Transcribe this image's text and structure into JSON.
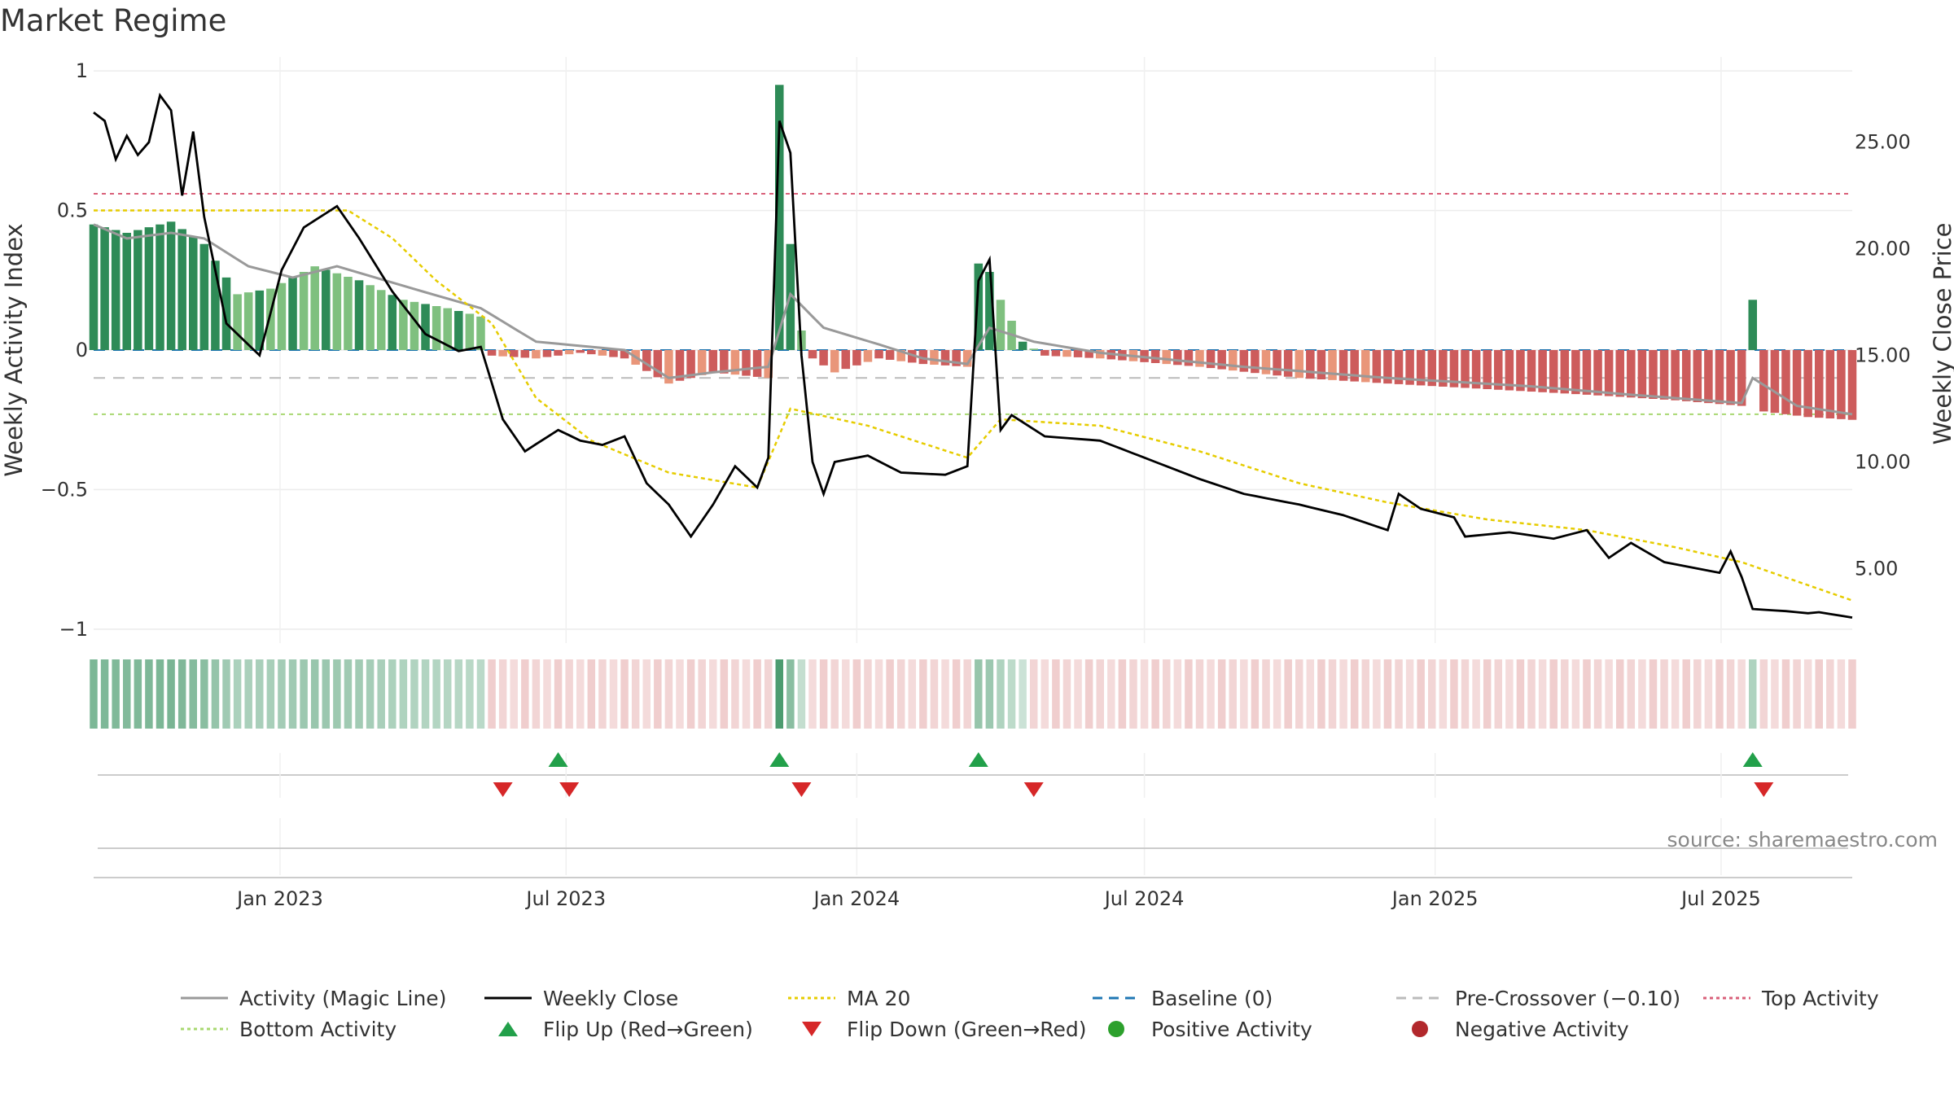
{
  "title": "Market Regime",
  "source": "source: sharemaestro.com",
  "chart_data": {
    "type": "bar",
    "title": "Market Regime",
    "left_axis": {
      "label": "Weekly Activity Index",
      "ylim": [
        -1.05,
        1.05
      ],
      "ticks": [
        1,
        0.5,
        0,
        -0.5,
        -1
      ],
      "tick_labels": [
        "1",
        "0.5",
        "0",
        "−0.5",
        "−1"
      ]
    },
    "right_axis": {
      "label": "Weekly Close Price",
      "ylim": [
        1.5,
        29.0
      ],
      "ticks": [
        25,
        20,
        15,
        10,
        5
      ],
      "tick_labels": [
        "25.00",
        "20.00",
        "15.00",
        "10.00",
        "5.00"
      ]
    },
    "x_axis": {
      "start": "2022-09-05",
      "end": "2025-09-22",
      "tick_labels": [
        "Jan 2023",
        "Jul 2023",
        "Jan 2024",
        "Jul 2024",
        "Jan 2025",
        "Jul 2025"
      ],
      "tick_dates": [
        "2023-01-01",
        "2023-07-01",
        "2024-01-01",
        "2024-07-01",
        "2025-01-01",
        "2025-07-01"
      ]
    },
    "reference_lines": {
      "top_activity": 0.56,
      "bottom_activity": -0.23,
      "baseline": 0,
      "pre_crossover": -0.1
    },
    "activity_anchors": [
      {
        "date": "2022-09-05",
        "value": 0.45
      },
      {
        "date": "2022-09-26",
        "value": 0.42
      },
      {
        "date": "2022-10-24",
        "value": 0.46
      },
      {
        "date": "2022-11-14",
        "value": 0.38
      },
      {
        "date": "2022-12-05",
        "value": 0.2
      },
      {
        "date": "2022-12-26",
        "value": 0.22
      },
      {
        "date": "2023-01-23",
        "value": 0.3
      },
      {
        "date": "2023-02-20",
        "value": 0.25
      },
      {
        "date": "2023-03-20",
        "value": 0.18
      },
      {
        "date": "2023-04-17",
        "value": 0.15
      },
      {
        "date": "2023-05-08",
        "value": 0.12
      },
      {
        "date": "2023-05-15",
        "value": -0.02
      },
      {
        "date": "2023-06-12",
        "value": -0.03
      },
      {
        "date": "2023-07-10",
        "value": -0.01
      },
      {
        "date": "2023-08-07",
        "value": -0.03
      },
      {
        "date": "2023-09-04",
        "value": -0.12
      },
      {
        "date": "2023-10-02",
        "value": -0.08
      },
      {
        "date": "2023-11-06",
        "value": -0.1
      },
      {
        "date": "2023-11-13",
        "value": 0.95
      },
      {
        "date": "2023-11-20",
        "value": 0.38
      },
      {
        "date": "2023-11-27",
        "value": 0.07
      },
      {
        "date": "2023-12-04",
        "value": -0.03
      },
      {
        "date": "2023-12-18",
        "value": -0.08
      },
      {
        "date": "2024-01-15",
        "value": -0.03
      },
      {
        "date": "2024-02-12",
        "value": -0.05
      },
      {
        "date": "2024-03-11",
        "value": -0.06
      },
      {
        "date": "2024-03-18",
        "value": 0.31
      },
      {
        "date": "2024-03-25",
        "value": 0.28
      },
      {
        "date": "2024-04-01",
        "value": 0.18
      },
      {
        "date": "2024-04-15",
        "value": 0.03
      },
      {
        "date": "2024-04-29",
        "value": -0.02
      },
      {
        "date": "2024-06-03",
        "value": -0.03
      },
      {
        "date": "2024-08-05",
        "value": -0.06
      },
      {
        "date": "2024-10-07",
        "value": -0.1
      },
      {
        "date": "2024-12-02",
        "value": -0.12
      },
      {
        "date": "2025-02-03",
        "value": -0.14
      },
      {
        "date": "2025-04-07",
        "value": -0.16
      },
      {
        "date": "2025-06-02",
        "value": -0.18
      },
      {
        "date": "2025-07-14",
        "value": -0.2
      },
      {
        "date": "2025-07-21",
        "value": 0.18
      },
      {
        "date": "2025-07-28",
        "value": -0.22
      },
      {
        "date": "2025-08-25",
        "value": -0.24
      },
      {
        "date": "2025-09-22",
        "value": -0.25
      }
    ],
    "close_anchors": [
      {
        "date": "2022-09-05",
        "value": 26.4
      },
      {
        "date": "2022-09-12",
        "value": 26.0
      },
      {
        "date": "2022-09-19",
        "value": 24.2
      },
      {
        "date": "2022-09-26",
        "value": 25.3
      },
      {
        "date": "2022-10-03",
        "value": 24.4
      },
      {
        "date": "2022-10-10",
        "value": 25.0
      },
      {
        "date": "2022-10-17",
        "value": 27.2
      },
      {
        "date": "2022-10-24",
        "value": 26.5
      },
      {
        "date": "2022-10-31",
        "value": 22.5
      },
      {
        "date": "2022-11-07",
        "value": 25.5
      },
      {
        "date": "2022-11-14",
        "value": 21.5
      },
      {
        "date": "2022-11-28",
        "value": 16.5
      },
      {
        "date": "2022-12-19",
        "value": 15.0
      },
      {
        "date": "2023-01-02",
        "value": 19.0
      },
      {
        "date": "2023-01-16",
        "value": 21.0
      },
      {
        "date": "2023-02-06",
        "value": 22.0
      },
      {
        "date": "2023-02-20",
        "value": 20.5
      },
      {
        "date": "2023-03-13",
        "value": 18.0
      },
      {
        "date": "2023-04-03",
        "value": 16.0
      },
      {
        "date": "2023-04-24",
        "value": 15.2
      },
      {
        "date": "2023-05-08",
        "value": 15.4
      },
      {
        "date": "2023-05-22",
        "value": 12.0
      },
      {
        "date": "2023-06-05",
        "value": 10.5
      },
      {
        "date": "2023-06-26",
        "value": 11.5
      },
      {
        "date": "2023-07-10",
        "value": 11.0
      },
      {
        "date": "2023-07-24",
        "value": 10.8
      },
      {
        "date": "2023-08-07",
        "value": 11.2
      },
      {
        "date": "2023-08-21",
        "value": 9.0
      },
      {
        "date": "2023-09-04",
        "value": 8.0
      },
      {
        "date": "2023-09-18",
        "value": 6.5
      },
      {
        "date": "2023-10-02",
        "value": 8.0
      },
      {
        "date": "2023-10-16",
        "value": 9.8
      },
      {
        "date": "2023-10-30",
        "value": 8.8
      },
      {
        "date": "2023-11-06",
        "value": 10.2
      },
      {
        "date": "2023-11-13",
        "value": 26.0
      },
      {
        "date": "2023-11-20",
        "value": 24.5
      },
      {
        "date": "2023-11-27",
        "value": 15.0
      },
      {
        "date": "2023-12-04",
        "value": 10.0
      },
      {
        "date": "2023-12-11",
        "value": 8.5
      },
      {
        "date": "2023-12-18",
        "value": 10.0
      },
      {
        "date": "2024-01-08",
        "value": 10.3
      },
      {
        "date": "2024-01-29",
        "value": 9.5
      },
      {
        "date": "2024-02-26",
        "value": 9.4
      },
      {
        "date": "2024-03-11",
        "value": 9.8
      },
      {
        "date": "2024-03-18",
        "value": 18.5
      },
      {
        "date": "2024-03-25",
        "value": 19.5
      },
      {
        "date": "2024-04-01",
        "value": 11.5
      },
      {
        "date": "2024-04-08",
        "value": 12.2
      },
      {
        "date": "2024-04-29",
        "value": 11.2
      },
      {
        "date": "2024-06-03",
        "value": 11.0
      },
      {
        "date": "2024-07-01",
        "value": 10.2
      },
      {
        "date": "2024-08-05",
        "value": 9.2
      },
      {
        "date": "2024-09-02",
        "value": 8.5
      },
      {
        "date": "2024-10-07",
        "value": 8.0
      },
      {
        "date": "2024-11-04",
        "value": 7.5
      },
      {
        "date": "2024-12-02",
        "value": 6.8
      },
      {
        "date": "2024-12-09",
        "value": 8.5
      },
      {
        "date": "2024-12-23",
        "value": 7.8
      },
      {
        "date": "2025-01-13",
        "value": 7.4
      },
      {
        "date": "2025-01-20",
        "value": 6.5
      },
      {
        "date": "2025-02-17",
        "value": 6.7
      },
      {
        "date": "2025-03-17",
        "value": 6.4
      },
      {
        "date": "2025-04-07",
        "value": 6.8
      },
      {
        "date": "2025-04-21",
        "value": 5.5
      },
      {
        "date": "2025-05-05",
        "value": 6.2
      },
      {
        "date": "2025-05-26",
        "value": 5.3
      },
      {
        "date": "2025-06-16",
        "value": 5.0
      },
      {
        "date": "2025-06-30",
        "value": 4.8
      },
      {
        "date": "2025-07-07",
        "value": 5.8
      },
      {
        "date": "2025-07-14",
        "value": 4.6
      },
      {
        "date": "2025-07-21",
        "value": 3.1
      },
      {
        "date": "2025-08-11",
        "value": 3.0
      },
      {
        "date": "2025-08-25",
        "value": 2.9
      },
      {
        "date": "2025-09-01",
        "value": 2.95
      },
      {
        "date": "2025-09-22",
        "value": 2.7
      }
    ],
    "magic_anchors": [
      {
        "date": "2022-09-05",
        "value": 0.45
      },
      {
        "date": "2022-09-26",
        "value": 0.4
      },
      {
        "date": "2022-10-24",
        "value": 0.42
      },
      {
        "date": "2022-11-14",
        "value": 0.4
      },
      {
        "date": "2022-12-12",
        "value": 0.3
      },
      {
        "date": "2023-01-09",
        "value": 0.26
      },
      {
        "date": "2023-02-06",
        "value": 0.3
      },
      {
        "date": "2023-03-20",
        "value": 0.23
      },
      {
        "date": "2023-05-08",
        "value": 0.15
      },
      {
        "date": "2023-06-12",
        "value": 0.03
      },
      {
        "date": "2023-08-07",
        "value": 0.0
      },
      {
        "date": "2023-09-04",
        "value": -0.1
      },
      {
        "date": "2023-10-02",
        "value": -0.08
      },
      {
        "date": "2023-11-06",
        "value": -0.06
      },
      {
        "date": "2023-11-20",
        "value": 0.2
      },
      {
        "date": "2023-12-11",
        "value": 0.08
      },
      {
        "date": "2024-01-15",
        "value": 0.02
      },
      {
        "date": "2024-02-12",
        "value": -0.03
      },
      {
        "date": "2024-03-11",
        "value": -0.05
      },
      {
        "date": "2024-03-25",
        "value": 0.08
      },
      {
        "date": "2024-04-22",
        "value": 0.03
      },
      {
        "date": "2024-06-03",
        "value": -0.01
      },
      {
        "date": "2024-09-02",
        "value": -0.06
      },
      {
        "date": "2024-12-02",
        "value": -0.1
      },
      {
        "date": "2025-03-03",
        "value": -0.13
      },
      {
        "date": "2025-05-05",
        "value": -0.16
      },
      {
        "date": "2025-07-14",
        "value": -0.19
      },
      {
        "date": "2025-07-21",
        "value": -0.1
      },
      {
        "date": "2025-08-18",
        "value": -0.2
      },
      {
        "date": "2025-09-22",
        "value": -0.23
      }
    ],
    "ma20_anchors": [
      {
        "date": "2022-09-05",
        "value": 21.8
      },
      {
        "date": "2023-02-13",
        "value": 21.8
      },
      {
        "date": "2023-03-13",
        "value": 20.5
      },
      {
        "date": "2023-04-10",
        "value": 18.5
      },
      {
        "date": "2023-05-15",
        "value": 16.5
      },
      {
        "date": "2023-06-12",
        "value": 13.0
      },
      {
        "date": "2023-07-17",
        "value": 11.0
      },
      {
        "date": "2023-09-04",
        "value": 9.5
      },
      {
        "date": "2023-10-30",
        "value": 8.8
      },
      {
        "date": "2023-11-20",
        "value": 12.5
      },
      {
        "date": "2024-01-08",
        "value": 11.7
      },
      {
        "date": "2024-03-11",
        "value": 10.2
      },
      {
        "date": "2024-04-01",
        "value": 12.0
      },
      {
        "date": "2024-06-03",
        "value": 11.7
      },
      {
        "date": "2024-08-05",
        "value": 10.5
      },
      {
        "date": "2024-10-07",
        "value": 9.0
      },
      {
        "date": "2024-12-02",
        "value": 8.1
      },
      {
        "date": "2025-02-03",
        "value": 7.3
      },
      {
        "date": "2025-04-07",
        "value": 6.8
      },
      {
        "date": "2025-06-02",
        "value": 6.0
      },
      {
        "date": "2025-07-14",
        "value": 5.3
      },
      {
        "date": "2025-09-22",
        "value": 3.5
      }
    ],
    "regime_strip": [
      {
        "start": "2022-09-05",
        "end": "2023-05-08",
        "state": "positive"
      },
      {
        "start": "2023-05-15",
        "end": "2023-11-06",
        "state": "negative"
      },
      {
        "start": "2023-11-13",
        "end": "2023-11-27",
        "state": "positive"
      },
      {
        "start": "2023-12-04",
        "end": "2024-03-11",
        "state": "negative"
      },
      {
        "start": "2024-03-18",
        "end": "2024-04-15",
        "state": "positive"
      },
      {
        "start": "2024-04-22",
        "end": "2025-07-14",
        "state": "negative"
      },
      {
        "start": "2025-07-21",
        "end": "2025-07-21",
        "state": "positive"
      },
      {
        "start": "2025-07-28",
        "end": "2025-09-22",
        "state": "negative"
      }
    ],
    "flip_up_dates": [
      "2023-06-26",
      "2023-11-13",
      "2024-03-18",
      "2025-07-21"
    ],
    "flip_down_dates": [
      "2023-05-22",
      "2023-07-03",
      "2023-11-27",
      "2024-04-22",
      "2025-07-28"
    ],
    "colors": {
      "strong_positive": "#2e8b57",
      "mild_positive": "#7fc07f",
      "strong_negative": "#cd5c5c",
      "mild_negative": "#e9967a",
      "close_line": "#000000",
      "magic_line": "#999999",
      "ma20": "#e6cc00",
      "baseline": "#1f77b4",
      "pre_crossover": "#bbbbbb",
      "top_activity": "#d9607a",
      "bottom_activity": "#a8d870",
      "flip_up": "#22a04a",
      "flip_down": "#d62728",
      "positive_dot": "#2ca02c",
      "negative_dot": "#b2282c"
    },
    "legend": [
      {
        "label": "Activity (Magic Line)",
        "kind": "line",
        "color": "#999999",
        "dash": ""
      },
      {
        "label": "Weekly Close",
        "kind": "line",
        "color": "#000000",
        "dash": ""
      },
      {
        "label": "MA 20",
        "kind": "line",
        "color": "#e6cc00",
        "dash": "4,4"
      },
      {
        "label": "Baseline (0)",
        "kind": "line",
        "color": "#1f77b4",
        "dash": "12,8"
      },
      {
        "label": "Pre-Crossover (−0.10)",
        "kind": "line",
        "color": "#bbbbbb",
        "dash": "12,8"
      },
      {
        "label": "Top Activity",
        "kind": "line",
        "color": "#d9607a",
        "dash": "4,4"
      },
      {
        "label": "Bottom Activity",
        "kind": "line",
        "color": "#a8d870",
        "dash": "4,4"
      },
      {
        "label": "Flip Up (Red→Green)",
        "kind": "triangle-up",
        "color": "#22a04a",
        "dash": ""
      },
      {
        "label": "Flip Down (Green→Red)",
        "kind": "triangle-down",
        "color": "#d62728",
        "dash": ""
      },
      {
        "label": "Positive Activity",
        "kind": "dot",
        "color": "#2ca02c",
        "dash": ""
      },
      {
        "label": "Negative Activity",
        "kind": "dot",
        "color": "#b2282c",
        "dash": ""
      }
    ]
  }
}
